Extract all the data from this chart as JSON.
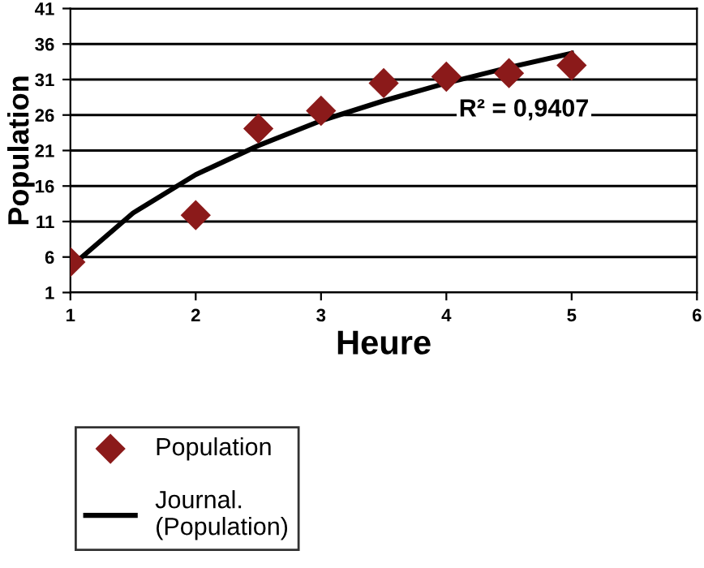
{
  "chart_data": {
    "type": "scatter",
    "xlabel": "Heure",
    "ylabel": "Population",
    "xlim": [
      1,
      6
    ],
    "xticks": [
      1,
      2,
      3,
      4,
      5,
      6
    ],
    "ylim": [
      1,
      41
    ],
    "yticks": [
      1,
      6,
      11,
      16,
      21,
      26,
      31,
      36,
      41
    ],
    "grid": "y",
    "legend": "bottom left",
    "annotations": [
      "R² = 0,9407"
    ],
    "series": [
      {
        "name": "Population",
        "marker": "diamond",
        "color": "#8b1a1a",
        "x": [
          1,
          2,
          2.5,
          3,
          3.5,
          4,
          4.5,
          5
        ],
        "values": [
          5.3,
          11.9,
          24.1,
          26.6,
          30.5,
          31.4,
          31.9,
          33
        ]
      },
      {
        "name": "Journal.\n(Population)",
        "type": "line",
        "color": "#000000",
        "x": [
          1,
          1.5,
          2,
          2.5,
          3,
          3.5,
          4,
          4.5,
          5
        ],
        "values": [
          4.6,
          12.2,
          17.6,
          21.7,
          25.2,
          28.0,
          30.5,
          32.7,
          34.7
        ]
      }
    ]
  }
}
